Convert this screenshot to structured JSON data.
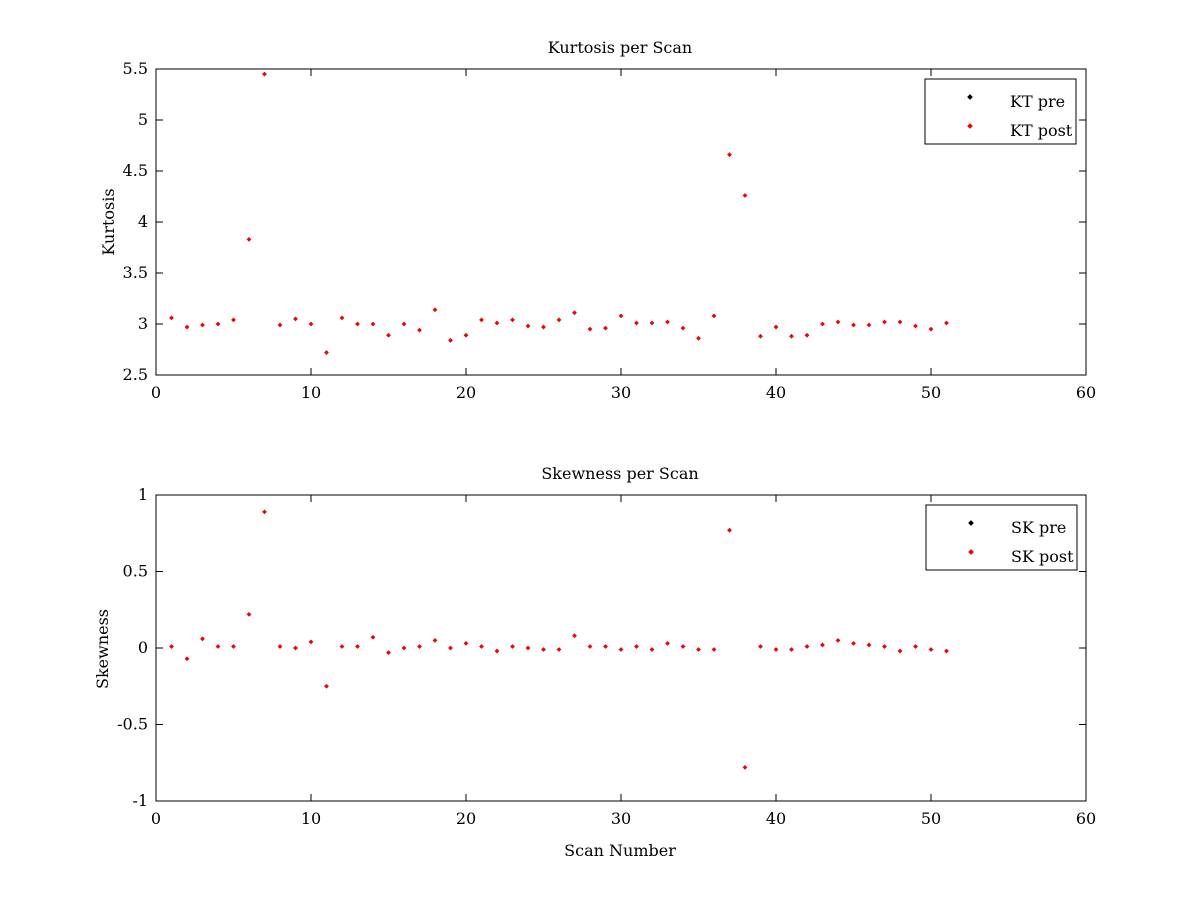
{
  "chart_data": [
    {
      "type": "scatter",
      "title": "Kurtosis per Scan",
      "xlabel": "",
      "ylabel": "Kurtosis",
      "xlim": [
        0,
        60
      ],
      "ylim": [
        2.5,
        5.5
      ],
      "xticks": [
        0,
        10,
        20,
        30,
        40,
        50,
        60
      ],
      "yticks": [
        2.5,
        3,
        3.5,
        4,
        4.5,
        5,
        5.5
      ],
      "legend_position": "top-right",
      "grid": false,
      "x": [
        1,
        2,
        3,
        4,
        5,
        6,
        7,
        8,
        9,
        10,
        11,
        12,
        13,
        14,
        15,
        16,
        17,
        18,
        19,
        20,
        21,
        22,
        23,
        24,
        25,
        26,
        27,
        28,
        29,
        30,
        31,
        32,
        33,
        34,
        35,
        36,
        37,
        38,
        39,
        40,
        41,
        42,
        43,
        44,
        45,
        46,
        47,
        48,
        49,
        50,
        51
      ],
      "series": [
        {
          "name": "KT pre",
          "color": "#000000",
          "values": [
            3.06,
            2.97,
            2.99,
            3.0,
            3.04,
            3.83,
            5.45,
            2.99,
            3.05,
            3.0,
            2.72,
            3.06,
            3.0,
            3.0,
            2.89,
            3.0,
            2.94,
            3.14,
            2.84,
            2.89,
            3.04,
            3.01,
            3.04,
            2.98,
            2.97,
            3.04,
            3.11,
            2.95,
            2.96,
            3.08,
            3.01,
            3.01,
            3.02,
            2.96,
            2.86,
            3.08,
            4.66,
            4.26,
            2.88,
            2.97,
            2.88,
            2.89,
            3.0,
            3.02,
            2.99,
            2.99,
            3.02,
            3.02,
            2.98,
            2.95,
            3.01
          ]
        },
        {
          "name": "KT post",
          "color": "#ff0000",
          "values": [
            3.06,
            2.97,
            2.99,
            3.0,
            3.04,
            3.83,
            5.45,
            2.99,
            3.05,
            3.0,
            2.72,
            3.06,
            3.0,
            3.0,
            2.89,
            3.0,
            2.94,
            3.14,
            2.84,
            2.89,
            3.04,
            3.01,
            3.04,
            2.98,
            2.97,
            3.04,
            3.11,
            2.95,
            2.96,
            3.08,
            3.01,
            3.01,
            3.02,
            2.96,
            2.86,
            3.08,
            4.66,
            4.26,
            2.88,
            2.97,
            2.88,
            2.89,
            3.0,
            3.02,
            2.99,
            2.99,
            3.02,
            3.02,
            2.98,
            2.95,
            3.01
          ]
        }
      ]
    },
    {
      "type": "scatter",
      "title": "Skewness per Scan",
      "xlabel": "Scan Number",
      "ylabel": "Skewness",
      "xlim": [
        0,
        60
      ],
      "ylim": [
        -1,
        1
      ],
      "xticks": [
        0,
        10,
        20,
        30,
        40,
        50,
        60
      ],
      "yticks": [
        -1,
        -0.5,
        0,
        0.5,
        1
      ],
      "legend_position": "top-right",
      "grid": false,
      "x": [
        1,
        2,
        3,
        4,
        5,
        6,
        7,
        8,
        9,
        10,
        11,
        12,
        13,
        14,
        15,
        16,
        17,
        18,
        19,
        20,
        21,
        22,
        23,
        24,
        25,
        26,
        27,
        28,
        29,
        30,
        31,
        32,
        33,
        34,
        35,
        36,
        37,
        38,
        39,
        40,
        41,
        42,
        43,
        44,
        45,
        46,
        47,
        48,
        49,
        50,
        51
      ],
      "series": [
        {
          "name": "SK pre",
          "color": "#000000",
          "values": [
            0.01,
            -0.07,
            0.06,
            0.01,
            0.01,
            0.22,
            0.89,
            0.01,
            0.0,
            0.04,
            -0.25,
            0.01,
            0.01,
            0.07,
            -0.03,
            0.0,
            0.01,
            0.05,
            0.0,
            0.03,
            0.01,
            -0.02,
            0.01,
            0.0,
            -0.01,
            -0.01,
            0.08,
            0.01,
            0.01,
            -0.01,
            0.01,
            -0.01,
            0.03,
            0.01,
            -0.01,
            -0.01,
            0.77,
            -0.78,
            0.01,
            -0.01,
            -0.01,
            0.01,
            0.02,
            0.05,
            0.03,
            0.02,
            0.01,
            -0.02,
            0.01,
            -0.01,
            -0.02
          ]
        },
        {
          "name": "SK post",
          "color": "#ff0000",
          "values": [
            0.01,
            -0.07,
            0.06,
            0.01,
            0.01,
            0.22,
            0.89,
            0.01,
            0.0,
            0.04,
            -0.25,
            0.01,
            0.01,
            0.07,
            -0.03,
            0.0,
            0.01,
            0.05,
            0.0,
            0.03,
            0.01,
            -0.02,
            0.01,
            0.0,
            -0.01,
            -0.01,
            0.08,
            0.01,
            0.01,
            -0.01,
            0.01,
            -0.01,
            0.03,
            0.01,
            -0.01,
            -0.01,
            0.77,
            -0.78,
            0.01,
            -0.01,
            -0.01,
            0.01,
            0.02,
            0.05,
            0.03,
            0.02,
            0.01,
            -0.02,
            0.01,
            -0.01,
            -0.02
          ]
        }
      ]
    }
  ]
}
